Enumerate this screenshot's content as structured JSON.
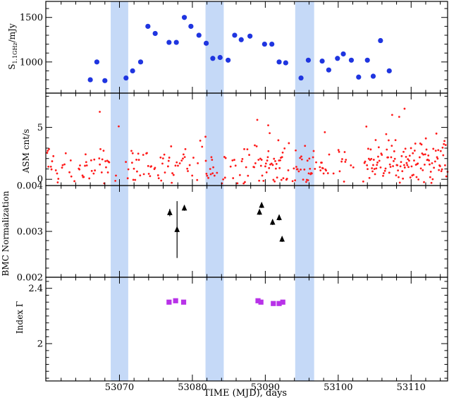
{
  "colors": {
    "band": "#c5d9f7",
    "radio": "#1f35e0",
    "asm": "#ff1a1a",
    "bmc": "#000000",
    "index": "#b832e8"
  },
  "chart_data": [
    {
      "type": "scatter",
      "panel": "radio",
      "ylabel_main": "S",
      "ylabel_sub": "1.1GHz",
      "ylabel_unit": "/mJy",
      "ylim": [
        650,
        1680
      ],
      "ytick_values": [
        1000,
        1500
      ],
      "ytick_labels": [
        "1000",
        "1500"
      ],
      "series": [
        {
          "name": "radio flux",
          "x": [
            53066.0,
            53066.9,
            53068.0,
            53070.9,
            53071.8,
            53072.9,
            53073.9,
            53074.9,
            53076.8,
            53077.8,
            53078.9,
            53079.8,
            53080.9,
            53081.9,
            53082.8,
            53083.8,
            53084.9,
            53085.8,
            53086.7,
            53087.9,
            53089.9,
            53090.9,
            53091.9,
            53092.8,
            53094.9,
            53095.9,
            53097.8,
            53098.7,
            53099.9,
            53100.7,
            53101.8,
            53102.8,
            53104.0,
            53104.8,
            53105.8,
            53107.0
          ],
          "y": [
            800,
            1000,
            790,
            820,
            900,
            1000,
            1400,
            1320,
            1220,
            1220,
            1500,
            1400,
            1300,
            1210,
            1040,
            1050,
            1020,
            1300,
            1250,
            1290,
            1200,
            1200,
            1000,
            990,
            820,
            1020,
            1010,
            910,
            1040,
            1090,
            1020,
            830,
            1020,
            840,
            1240,
            900
          ]
        }
      ]
    },
    {
      "type": "scatter",
      "panel": "asm",
      "ylabel": "ASM cnt/s",
      "ylim": [
        -0.6,
        8.3
      ],
      "ytick_values": [
        0,
        5
      ],
      "ytick_labels": [
        "0",
        "5"
      ],
      "notes": "Dense RXTE/ASM light curve; individual points generated to mimic the cloud (values roughly 0-7 cnt/s, gaps near 53070, 53085, 53096, 53103).",
      "series": [
        {
          "name": "ASM rate"
        }
      ]
    },
    {
      "type": "scatter",
      "panel": "bmc",
      "ylabel": "BMC Normalization",
      "ylim": [
        0.002,
        0.004
      ],
      "ytick_values": [
        0.002,
        0.003,
        0.004
      ],
      "ytick_labels": [
        "0.002",
        "0.003",
        "0.004"
      ],
      "series": [
        {
          "name": "BMC normalization",
          "x": [
            53076.9,
            53077.9,
            53078.9,
            53089.2,
            53089.5,
            53091.0,
            53091.9,
            53092.3
          ],
          "y": [
            0.00341,
            0.00304,
            0.00351,
            0.00342,
            0.00357,
            0.0032,
            0.0033,
            0.00283
          ],
          "err": [
            8e-05,
            0.00062,
            6e-05,
            6e-05,
            6e-05,
            6e-05,
            6e-05,
            6e-05
          ]
        }
      ]
    },
    {
      "type": "scatter",
      "panel": "index",
      "ylabel": "Index Γ",
      "ylim": [
        1.73,
        2.48
      ],
      "ytick_values": [
        2.0,
        2.4
      ],
      "ytick_labels": [
        "2",
        "2.4"
      ],
      "series": [
        {
          "name": "photon index",
          "x": [
            53076.8,
            53077.7,
            53078.8,
            53089.0,
            53089.4,
            53091.1,
            53091.9,
            53092.4
          ],
          "y": [
            2.3,
            2.31,
            2.3,
            2.31,
            2.3,
            2.29,
            2.29,
            2.3
          ]
        }
      ]
    }
  ],
  "shared": {
    "xlabel": "TIME (MJD), days",
    "xlim": [
      53059.9,
      53115.0
    ],
    "xtick_values": [
      53070,
      53080,
      53090,
      53100,
      53110
    ],
    "xtick_labels": [
      "53070",
      "53080",
      "53090",
      "53100",
      "53110"
    ],
    "bands": [
      [
        53068.8,
        53071.2
      ],
      [
        53081.8,
        53084.3
      ],
      [
        53094.1,
        53096.7
      ]
    ]
  }
}
